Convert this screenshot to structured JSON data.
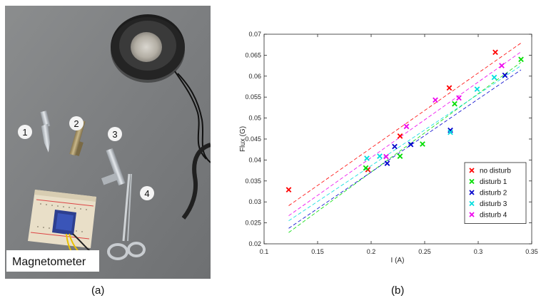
{
  "figure": {
    "panel_a_label": "(a)",
    "panel_b_label": "(b)"
  },
  "photo": {
    "caption": "Magnetometer",
    "markers": [
      "1",
      "2",
      "3",
      "4"
    ]
  },
  "chart_data": {
    "type": "scatter",
    "xlabel": "I (A)",
    "ylabel": "Flux (G)",
    "xlim": [
      0.1,
      0.35
    ],
    "ylim": [
      0.02,
      0.07
    ],
    "xticks": [
      0.1,
      0.15,
      0.2,
      0.25,
      0.3,
      0.35
    ],
    "xtick_labels": [
      "0.1",
      "0.15",
      "0.2",
      "0.25",
      "0.3",
      "0.35"
    ],
    "yticks": [
      0.02,
      0.025,
      0.03,
      0.035,
      0.04,
      0.045,
      0.05,
      0.055,
      0.06,
      0.065,
      0.07
    ],
    "ytick_labels": [
      "0.02",
      "0.025",
      "0.03",
      "0.035",
      "0.04",
      "0.045",
      "0.05",
      "0.055",
      "0.06",
      "0.065",
      "0.07"
    ],
    "grid": false,
    "legend_position": "lower-right",
    "marker": "x",
    "fit_lines": "dashed",
    "series": [
      {
        "name": "no disturb",
        "color": "#ff0000",
        "x": [
          0.123,
          0.197,
          0.227,
          0.273,
          0.316
        ],
        "y": [
          0.0329,
          0.0377,
          0.0457,
          0.0572,
          0.0657
        ],
        "fit": [
          [
            0.123,
            0.0291
          ],
          [
            0.34,
            0.0679
          ]
        ]
      },
      {
        "name": "disturb 1",
        "color": "#00dd00",
        "x": [
          0.195,
          0.227,
          0.248,
          0.278,
          0.34
        ],
        "y": [
          0.0381,
          0.0409,
          0.0438,
          0.0534,
          0.064
        ],
        "fit": [
          [
            0.123,
            0.0227
          ],
          [
            0.34,
            0.0633
          ]
        ]
      },
      {
        "name": "disturb 2",
        "color": "#0000cc",
        "x": [
          0.215,
          0.222,
          0.237,
          0.274,
          0.325
        ],
        "y": [
          0.0392,
          0.0432,
          0.0437,
          0.0471,
          0.0602
        ],
        "fit": [
          [
            0.123,
            0.0237
          ],
          [
            0.34,
            0.0615
          ]
        ]
      },
      {
        "name": "disturb 3",
        "color": "#00dddd",
        "x": [
          0.196,
          0.208,
          0.274,
          0.299,
          0.315
        ],
        "y": [
          0.0404,
          0.0409,
          0.0466,
          0.0569,
          0.0597
        ],
        "fit": [
          [
            0.123,
            0.0255
          ],
          [
            0.34,
            0.0625
          ]
        ]
      },
      {
        "name": "disturb 4",
        "color": "#ee00ee",
        "x": [
          0.214,
          0.233,
          0.26,
          0.282,
          0.322
        ],
        "y": [
          0.0408,
          0.048,
          0.0543,
          0.0548,
          0.0625
        ],
        "fit": [
          [
            0.123,
            0.0267
          ],
          [
            0.34,
            0.0658
          ]
        ]
      }
    ]
  }
}
